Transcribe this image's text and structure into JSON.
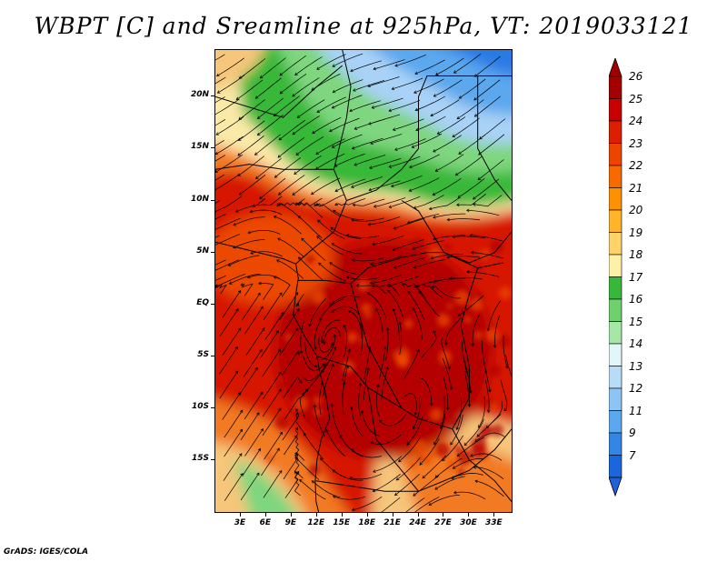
{
  "title": "WBPT [C] and Sreamline at 925hPa, VT: 2019033121",
  "credit": "GrADS: IGES/COLA",
  "lat_ticks": [
    {
      "label": "20N",
      "value": 20
    },
    {
      "label": "15N",
      "value": 15
    },
    {
      "label": "10N",
      "value": 10
    },
    {
      "label": "5N",
      "value": 5
    },
    {
      "label": "EQ",
      "value": 0
    },
    {
      "label": "5S",
      "value": -5
    },
    {
      "label": "10S",
      "value": -10
    },
    {
      "label": "15S",
      "value": -15
    }
  ],
  "lon_ticks": [
    {
      "label": "3E",
      "value": 3
    },
    {
      "label": "6E",
      "value": 6
    },
    {
      "label": "9E",
      "value": 9
    },
    {
      "label": "12E",
      "value": 12
    },
    {
      "label": "15E",
      "value": 15
    },
    {
      "label": "18E",
      "value": 18
    },
    {
      "label": "21E",
      "value": 21
    },
    {
      "label": "24E",
      "value": 24
    },
    {
      "label": "27E",
      "value": 27
    },
    {
      "label": "30E",
      "value": 30
    },
    {
      "label": "33E",
      "value": 33
    }
  ],
  "extent": {
    "lon": [
      0,
      35
    ],
    "lat": [
      -20,
      24.5
    ]
  },
  "colorbar": {
    "labels": [
      "26",
      "25",
      "24",
      "23",
      "22",
      "21",
      "20",
      "19",
      "18",
      "17",
      "16",
      "15",
      "14",
      "13",
      "12",
      "11",
      "9",
      "7"
    ],
    "colors": [
      "#a50000",
      "#c80000",
      "#de1e00",
      "#ee4400",
      "#f86a00",
      "#ff9000",
      "#ffb42a",
      "#ffd36a",
      "#fff0a8",
      "#38b838",
      "#6ed16e",
      "#a6e6a6",
      "#e0f6f8",
      "#b8dcf8",
      "#8cc4f4",
      "#5ca8ee",
      "#3486e6",
      "#1a66dc"
    ],
    "under_color": "#2060d8",
    "over_color": "#a00000"
  },
  "field_colors": {
    "hot_deep": "#b40000",
    "hot": "#d71800",
    "warm": "#ec4a00",
    "orange": "#f27a20",
    "tan": "#f6c67a",
    "pale_yellow": "#fbe9a8",
    "green": "#38b838",
    "green_light": "#7ed67e",
    "cyan_pale": "#e0f6f8",
    "blue_light": "#a8d2f6",
    "blue": "#5ca8ee",
    "blue_deep": "#2a7ae4"
  }
}
